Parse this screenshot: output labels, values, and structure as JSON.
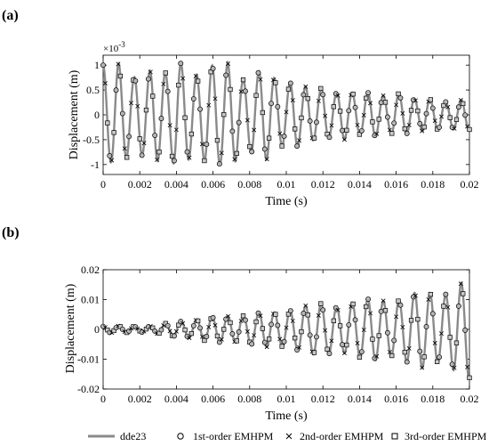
{
  "chart_data": [
    {
      "panel_label": "(a)",
      "type": "line",
      "xlabel": "Time (s)",
      "ylabel": "Displacement (m)",
      "y_multiplier": "×10",
      "y_exponent": "-3",
      "xlim": [
        0,
        0.02
      ],
      "ylim": [
        -1.2,
        1.2
      ],
      "x_ticks": [
        0,
        0.002,
        0.004,
        0.006,
        0.008,
        0.01,
        0.012,
        0.014,
        0.016,
        0.018,
        0.02
      ],
      "y_ticks": [
        -1,
        -0.5,
        0,
        0.5,
        1
      ],
      "x_tick_labels": [
        "0",
        "0.002",
        "0.004",
        "0.006",
        "0.008",
        "0.01",
        "0.012",
        "0.014",
        "0.016",
        "0.018",
        "0.02"
      ],
      "y_tick_labels": [
        "-1",
        "-0.5",
        "0",
        "0.5",
        "1"
      ],
      "series": [
        {
          "name": "dde23",
          "style": "line"
        },
        {
          "name": "1st-order EMHPM",
          "style": "circle"
        },
        {
          "name": "2nd-order EMHPM",
          "style": "x"
        },
        {
          "name": "3rd-order EMHPM",
          "style": "square"
        }
      ],
      "signal": {
        "t": [
          0,
          0.0004,
          0.0008,
          0.0012,
          0.0016,
          0.002,
          0.0024,
          0.0028,
          0.0032,
          0.0036,
          0.004,
          0.0044,
          0.0048,
          0.0052,
          0.0056,
          0.006,
          0.0064,
          0.0068,
          0.0072,
          0.0076,
          0.008,
          0.0084,
          0.0088,
          0.0092,
          0.0096,
          0.01,
          0.0104,
          0.0108,
          0.0112,
          0.0116,
          0.012,
          0.0124,
          0.0128,
          0.0132,
          0.0136,
          0.014,
          0.0144,
          0.0148,
          0.0152,
          0.0156,
          0.016,
          0.0164,
          0.0168,
          0.0172,
          0.0176,
          0.018,
          0.0184,
          0.0188,
          0.0192,
          0.0196,
          0.02
        ],
        "amplitude": [
          1.0,
          0.95,
          1.05,
          0.9,
          0.75,
          0.8,
          0.85,
          0.95,
          0.9,
          0.8,
          1.1,
          1.0,
          0.85,
          0.8,
          0.95,
          1.0,
          1.0,
          1.05,
          0.95,
          0.7,
          0.75,
          0.85,
          0.95,
          0.8,
          0.65,
          0.6,
          0.7,
          0.6,
          0.55,
          0.5,
          0.55,
          0.45,
          0.45,
          0.5,
          0.45,
          0.4,
          0.45,
          0.45,
          0.4,
          0.35,
          0.45,
          0.4,
          0.35,
          0.3,
          0.35,
          0.3,
          0.3,
          0.25,
          0.3,
          0.3,
          0.3
        ],
        "period_s": 0.00085,
        "phase": 1.5708
      }
    },
    {
      "panel_label": "(b)",
      "type": "line",
      "xlabel": "Time (s)",
      "ylabel": "Displacement (m)",
      "xlim": [
        0,
        0.02
      ],
      "ylim": [
        -0.02,
        0.02
      ],
      "x_ticks": [
        0,
        0.002,
        0.004,
        0.006,
        0.008,
        0.01,
        0.012,
        0.014,
        0.016,
        0.018,
        0.02
      ],
      "y_ticks": [
        -0.02,
        -0.01,
        0,
        0.01,
        0.02
      ],
      "x_tick_labels": [
        "0",
        "0.002",
        "0.004",
        "0.006",
        "0.008",
        "0.01",
        "0.012",
        "0.014",
        "0.016",
        "0.018",
        "0.02"
      ],
      "y_tick_labels": [
        "-0.02",
        "-0.01",
        "0",
        "0.01",
        "0.02"
      ],
      "series": [
        {
          "name": "dde23",
          "style": "line"
        },
        {
          "name": "1st-order EMHPM",
          "style": "circle"
        },
        {
          "name": "2nd-order EMHPM",
          "style": "x"
        },
        {
          "name": "3rd-order EMHPM",
          "style": "square"
        }
      ],
      "signal": {
        "t": [
          0,
          0.0004,
          0.0008,
          0.0012,
          0.0016,
          0.002,
          0.0024,
          0.0028,
          0.0032,
          0.0036,
          0.004,
          0.0044,
          0.0048,
          0.0052,
          0.0056,
          0.006,
          0.0064,
          0.0068,
          0.0072,
          0.0076,
          0.008,
          0.0084,
          0.0088,
          0.0092,
          0.0096,
          0.01,
          0.0104,
          0.0108,
          0.0112,
          0.0116,
          0.012,
          0.0124,
          0.0128,
          0.0132,
          0.0136,
          0.014,
          0.0144,
          0.0148,
          0.0152,
          0.0156,
          0.016,
          0.0164,
          0.0168,
          0.0172,
          0.0176,
          0.018,
          0.0184,
          0.0188,
          0.0192,
          0.0196,
          0.02
        ],
        "amplitude": [
          0.001,
          0.0012,
          0.0012,
          0.0011,
          0.001,
          0.0009,
          0.001,
          0.0013,
          0.0018,
          0.0022,
          0.0025,
          0.0028,
          0.003,
          0.0034,
          0.0038,
          0.0042,
          0.0044,
          0.0045,
          0.0044,
          0.0045,
          0.005,
          0.0055,
          0.006,
          0.0058,
          0.0055,
          0.006,
          0.0068,
          0.0075,
          0.0082,
          0.0085,
          0.0088,
          0.0082,
          0.0075,
          0.008,
          0.009,
          0.0095,
          0.0102,
          0.0105,
          0.0098,
          0.009,
          0.0095,
          0.0105,
          0.0115,
          0.013,
          0.0128,
          0.0118,
          0.011,
          0.012,
          0.014,
          0.0158,
          0.0165
        ],
        "period_s": 0.00085,
        "phase": 1.5708
      }
    }
  ]
}
